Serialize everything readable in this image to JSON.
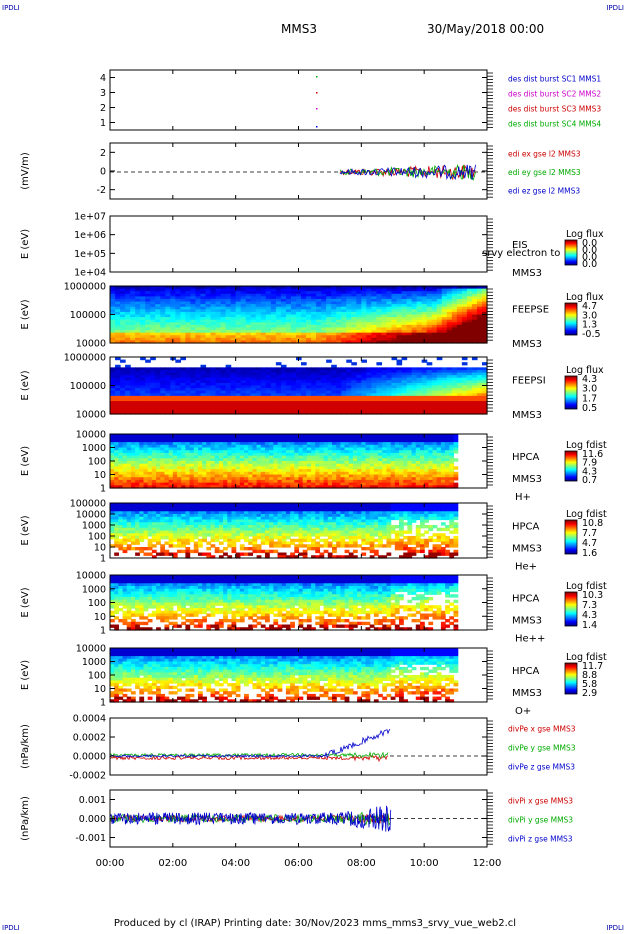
{
  "corner_label": "IPDLI",
  "header": {
    "spacecraft": "MMS3",
    "datetime": "30/May/2018 00:00"
  },
  "footer": "Produced by cl (IRAP)    Printing date: 30/Nov/2023    mms_mms3_srvy_vue_web2.cl",
  "colors": {
    "fg": "#000000",
    "blue": "#0000cc",
    "red": "#cc0000",
    "green": "#00aa00",
    "magenta": "#cc00cc"
  },
  "chart_data": [
    {
      "type": "line",
      "id": "burst",
      "ylim": [
        0.5,
        4.5
      ],
      "yticks": [
        "1",
        "2",
        "3",
        "4"
      ],
      "series": [
        {
          "name": "des dist burst SC1 MMS1",
          "color": "#0000cc"
        },
        {
          "name": "des dist burst SC2 MMS2",
          "color": "#cc00cc"
        },
        {
          "name": "des dist burst SC3 MMS3",
          "color": "#cc0000"
        },
        {
          "name": "des dist burst SC4 MMS4",
          "color": "#00aa00"
        }
      ]
    },
    {
      "type": "line",
      "id": "edi",
      "ylabel": "(mV/m)",
      "ylim": [
        -3,
        3
      ],
      "yticks": [
        "-2",
        "0",
        "2"
      ],
      "series": [
        {
          "name": "edi ex gse l2 MMS3",
          "color": "#cc0000"
        },
        {
          "name": "edi ey gse l2 MMS3",
          "color": "#00aa00"
        },
        {
          "name": "edi ez gse l2 MMS3",
          "color": "#0000cc"
        }
      ]
    },
    {
      "type": "heatmap",
      "id": "eis",
      "ylabel": "E (eV)",
      "yticks": [
        "1e+04",
        "1e+05",
        "1e+06",
        "1e+07"
      ],
      "colorbar": {
        "title": "Log flux",
        "ticks": [
          "0.0",
          "0.0",
          "0.0",
          "0.0"
        ]
      },
      "labels": [
        "EIS",
        "MMS3"
      ],
      "overlay": "srvy electron to"
    },
    {
      "type": "heatmap",
      "id": "feepse",
      "ylabel": "E (eV)",
      "yticks": [
        "10000",
        "100000",
        "1000000"
      ],
      "colorbar": {
        "title": "Log flux",
        "ticks": [
          "4.7",
          "3.0",
          "1.3",
          "-0.5"
        ]
      },
      "labels": [
        "FEEPSE",
        "MMS3"
      ]
    },
    {
      "type": "heatmap",
      "id": "feepsi",
      "ylabel": "E (eV)",
      "yticks": [
        "10000",
        "100000",
        "1000000"
      ],
      "colorbar": {
        "title": "Log flux",
        "ticks": [
          "4.3",
          "3.0",
          "1.7",
          "0.5"
        ]
      },
      "labels": [
        "FEEPSI",
        "MMS3"
      ]
    },
    {
      "type": "heatmap",
      "id": "hpca_h",
      "ylabel": "E (eV)",
      "yticks": [
        "1",
        "10",
        "100",
        "1000",
        "10000"
      ],
      "colorbar": {
        "title": "Log fdist",
        "ticks": [
          "11.6",
          "7.9",
          "4.3",
          "0.7"
        ]
      },
      "labels": [
        "HPCA",
        "MMS3",
        "H+"
      ]
    },
    {
      "type": "heatmap",
      "id": "hpca_he",
      "ylabel": "E (eV)",
      "yticks": [
        "1",
        "10",
        "100",
        "1000",
        "10000",
        "100000"
      ],
      "colorbar": {
        "title": "Log fdist",
        "ticks": [
          "10.8",
          "7.7",
          "4.7",
          "1.6"
        ]
      },
      "labels": [
        "HPCA",
        "MMS3",
        "He+"
      ]
    },
    {
      "type": "heatmap",
      "id": "hpca_hepp",
      "ylabel": "E (eV)",
      "yticks": [
        "1",
        "10",
        "100",
        "1000",
        "10000"
      ],
      "colorbar": {
        "title": "Log fdist",
        "ticks": [
          "10.3",
          "7.3",
          "4.3",
          "1.4"
        ]
      },
      "labels": [
        "HPCA",
        "MMS3",
        "He++"
      ]
    },
    {
      "type": "heatmap",
      "id": "hpca_o",
      "ylabel": "E (eV)",
      "yticks": [
        "1",
        "10",
        "100",
        "1000",
        "10000"
      ],
      "colorbar": {
        "title": "Log fdist",
        "ticks": [
          "11.7",
          "8.8",
          "5.8",
          "2.9"
        ]
      },
      "labels": [
        "HPCA",
        "MMS3",
        "O+"
      ]
    },
    {
      "type": "line",
      "id": "divpe",
      "ylabel": "(nPa/km)",
      "ylim": [
        -0.0002,
        0.0004
      ],
      "yticks": [
        "-0.0002",
        "0.0000",
        "0.0002",
        "0.0004"
      ],
      "series": [
        {
          "name": "divPe x gse MMS3",
          "color": "#cc0000"
        },
        {
          "name": "divPe y gse MMS3",
          "color": "#00aa00"
        },
        {
          "name": "divPe z gse MMS3",
          "color": "#0000cc"
        }
      ]
    },
    {
      "type": "line",
      "id": "divpi",
      "ylabel": "(nPa/km)",
      "ylim": [
        -0.0015,
        0.0015
      ],
      "yticks": [
        "-0.001",
        "0.000",
        "0.001"
      ],
      "series": [
        {
          "name": "divPi x gse MMS3",
          "color": "#cc0000"
        },
        {
          "name": "divPi y gse MMS3",
          "color": "#00aa00"
        },
        {
          "name": "divPi z gse MMS3",
          "color": "#0000cc"
        }
      ]
    }
  ],
  "time_axis": {
    "ticks": [
      "00:00",
      "02:00",
      "04:00",
      "06:00",
      "08:00",
      "10:00",
      "12:00"
    ]
  }
}
